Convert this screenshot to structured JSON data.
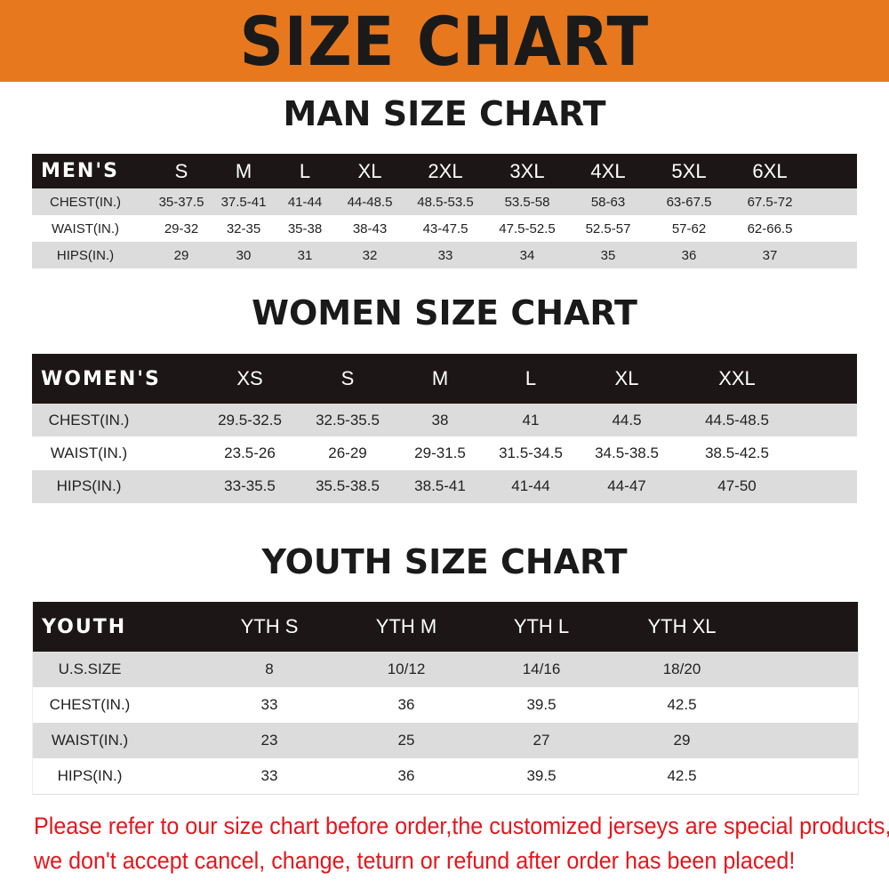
{
  "header": {
    "title": "SIZE CHART",
    "color": "#e8781e"
  },
  "men": {
    "title": "MAN SIZE CHART",
    "columns": [
      "MEN'S",
      "S",
      "M",
      "L",
      "XL",
      "2XL",
      "3XL",
      "4XL",
      "5XL",
      "6XL"
    ],
    "rows": [
      [
        "CHEST(IN.)",
        "35-37.5",
        "37.5-41",
        "41-44",
        "44-48.5",
        "48.5-53.5",
        "53.5-58",
        "58-63",
        "63-67.5",
        "67.5-72"
      ],
      [
        "WAIST(IN.)",
        "29-32",
        "32-35",
        "35-38",
        "38-43",
        "43-47.5",
        "47.5-52.5",
        "52.5-57",
        "57-62",
        "62-66.5"
      ],
      [
        "HIPS(IN.)",
        "29",
        "30",
        "31",
        "32",
        "33",
        "34",
        "35",
        "36",
        "37"
      ]
    ]
  },
  "women": {
    "title": "WOMEN SIZE CHART",
    "columns": [
      "WOMEN'S",
      "XS",
      "S",
      "M",
      "L",
      "XL",
      "XXL"
    ],
    "rows": [
      [
        "CHEST(IN.)",
        "29.5-32.5",
        "32.5-35.5",
        "38",
        "41",
        "44.5",
        "44.5-48.5"
      ],
      [
        "WAIST(IN.)",
        "23.5-26",
        "26-29",
        "29-31.5",
        "31.5-34.5",
        "34.5-38.5",
        "38.5-42.5"
      ],
      [
        "HIPS(IN.)",
        "33-35.5",
        "35.5-38.5",
        "38.5-41",
        "41-44",
        "44-47",
        "47-50"
      ]
    ]
  },
  "youth": {
    "title": "YOUTH SIZE CHART",
    "columns": [
      "YOUTH",
      "YTH S",
      "YTH M",
      "YTH L",
      "YTH XL"
    ],
    "rows": [
      [
        "U.S.SIZE",
        "8",
        "10/12",
        "14/16",
        "18/20"
      ],
      [
        "CHEST(IN.)",
        "33",
        "36",
        "39.5",
        "42.5"
      ],
      [
        "WAIST(IN.)",
        "23",
        "25",
        "27",
        "29"
      ],
      [
        "HIPS(IN.)",
        "33",
        "36",
        "39.5",
        "42.5"
      ]
    ]
  },
  "notice": {
    "line1": "Please refer to our size chart before order,the customized jerseys are special products,",
    "line2": "we don't accept cancel, change, teturn or refund after order has been placed!",
    "color": "#e4161c"
  }
}
